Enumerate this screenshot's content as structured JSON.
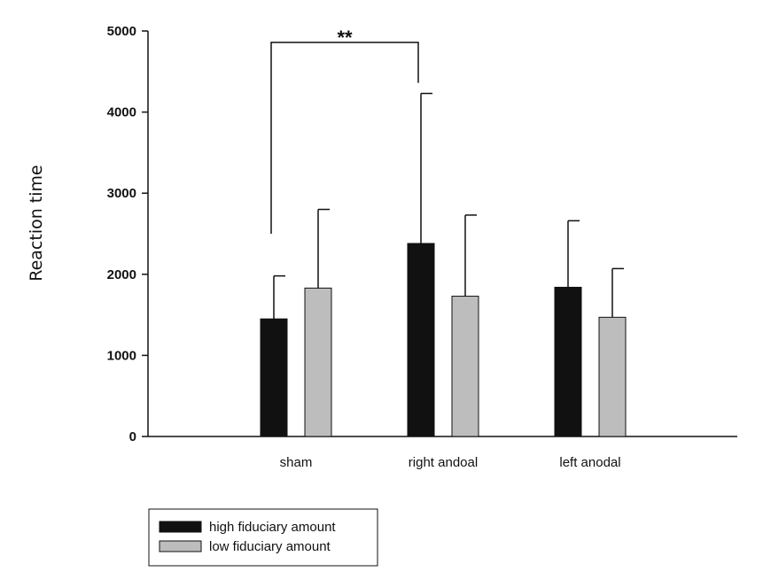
{
  "chart_data": {
    "type": "bar",
    "title": "",
    "xlabel": "",
    "ylabel": "Reaction time",
    "ylim": [
      0,
      5000
    ],
    "yticks": [
      0,
      1000,
      2000,
      3000,
      4000,
      5000
    ],
    "categories": [
      "sham",
      "right andoal",
      "left anodal"
    ],
    "series": [
      {
        "name": "high fiduciary amount",
        "color": "#111111",
        "values": [
          1450,
          2380,
          1840
        ],
        "error": [
          530,
          1850,
          820
        ]
      },
      {
        "name": "low fiduciary amount",
        "color": "#bdbdbd",
        "values": [
          1830,
          1730,
          1470
        ],
        "error": [
          970,
          1000,
          600
        ]
      }
    ],
    "significance": {
      "label": "**",
      "from_category": "sham",
      "to_category": "right andoal",
      "bracket_value": 4860,
      "left_drop_value": 2500,
      "right_drop_value": 4360
    },
    "legend_placement": "bottom-left",
    "grid": false
  }
}
